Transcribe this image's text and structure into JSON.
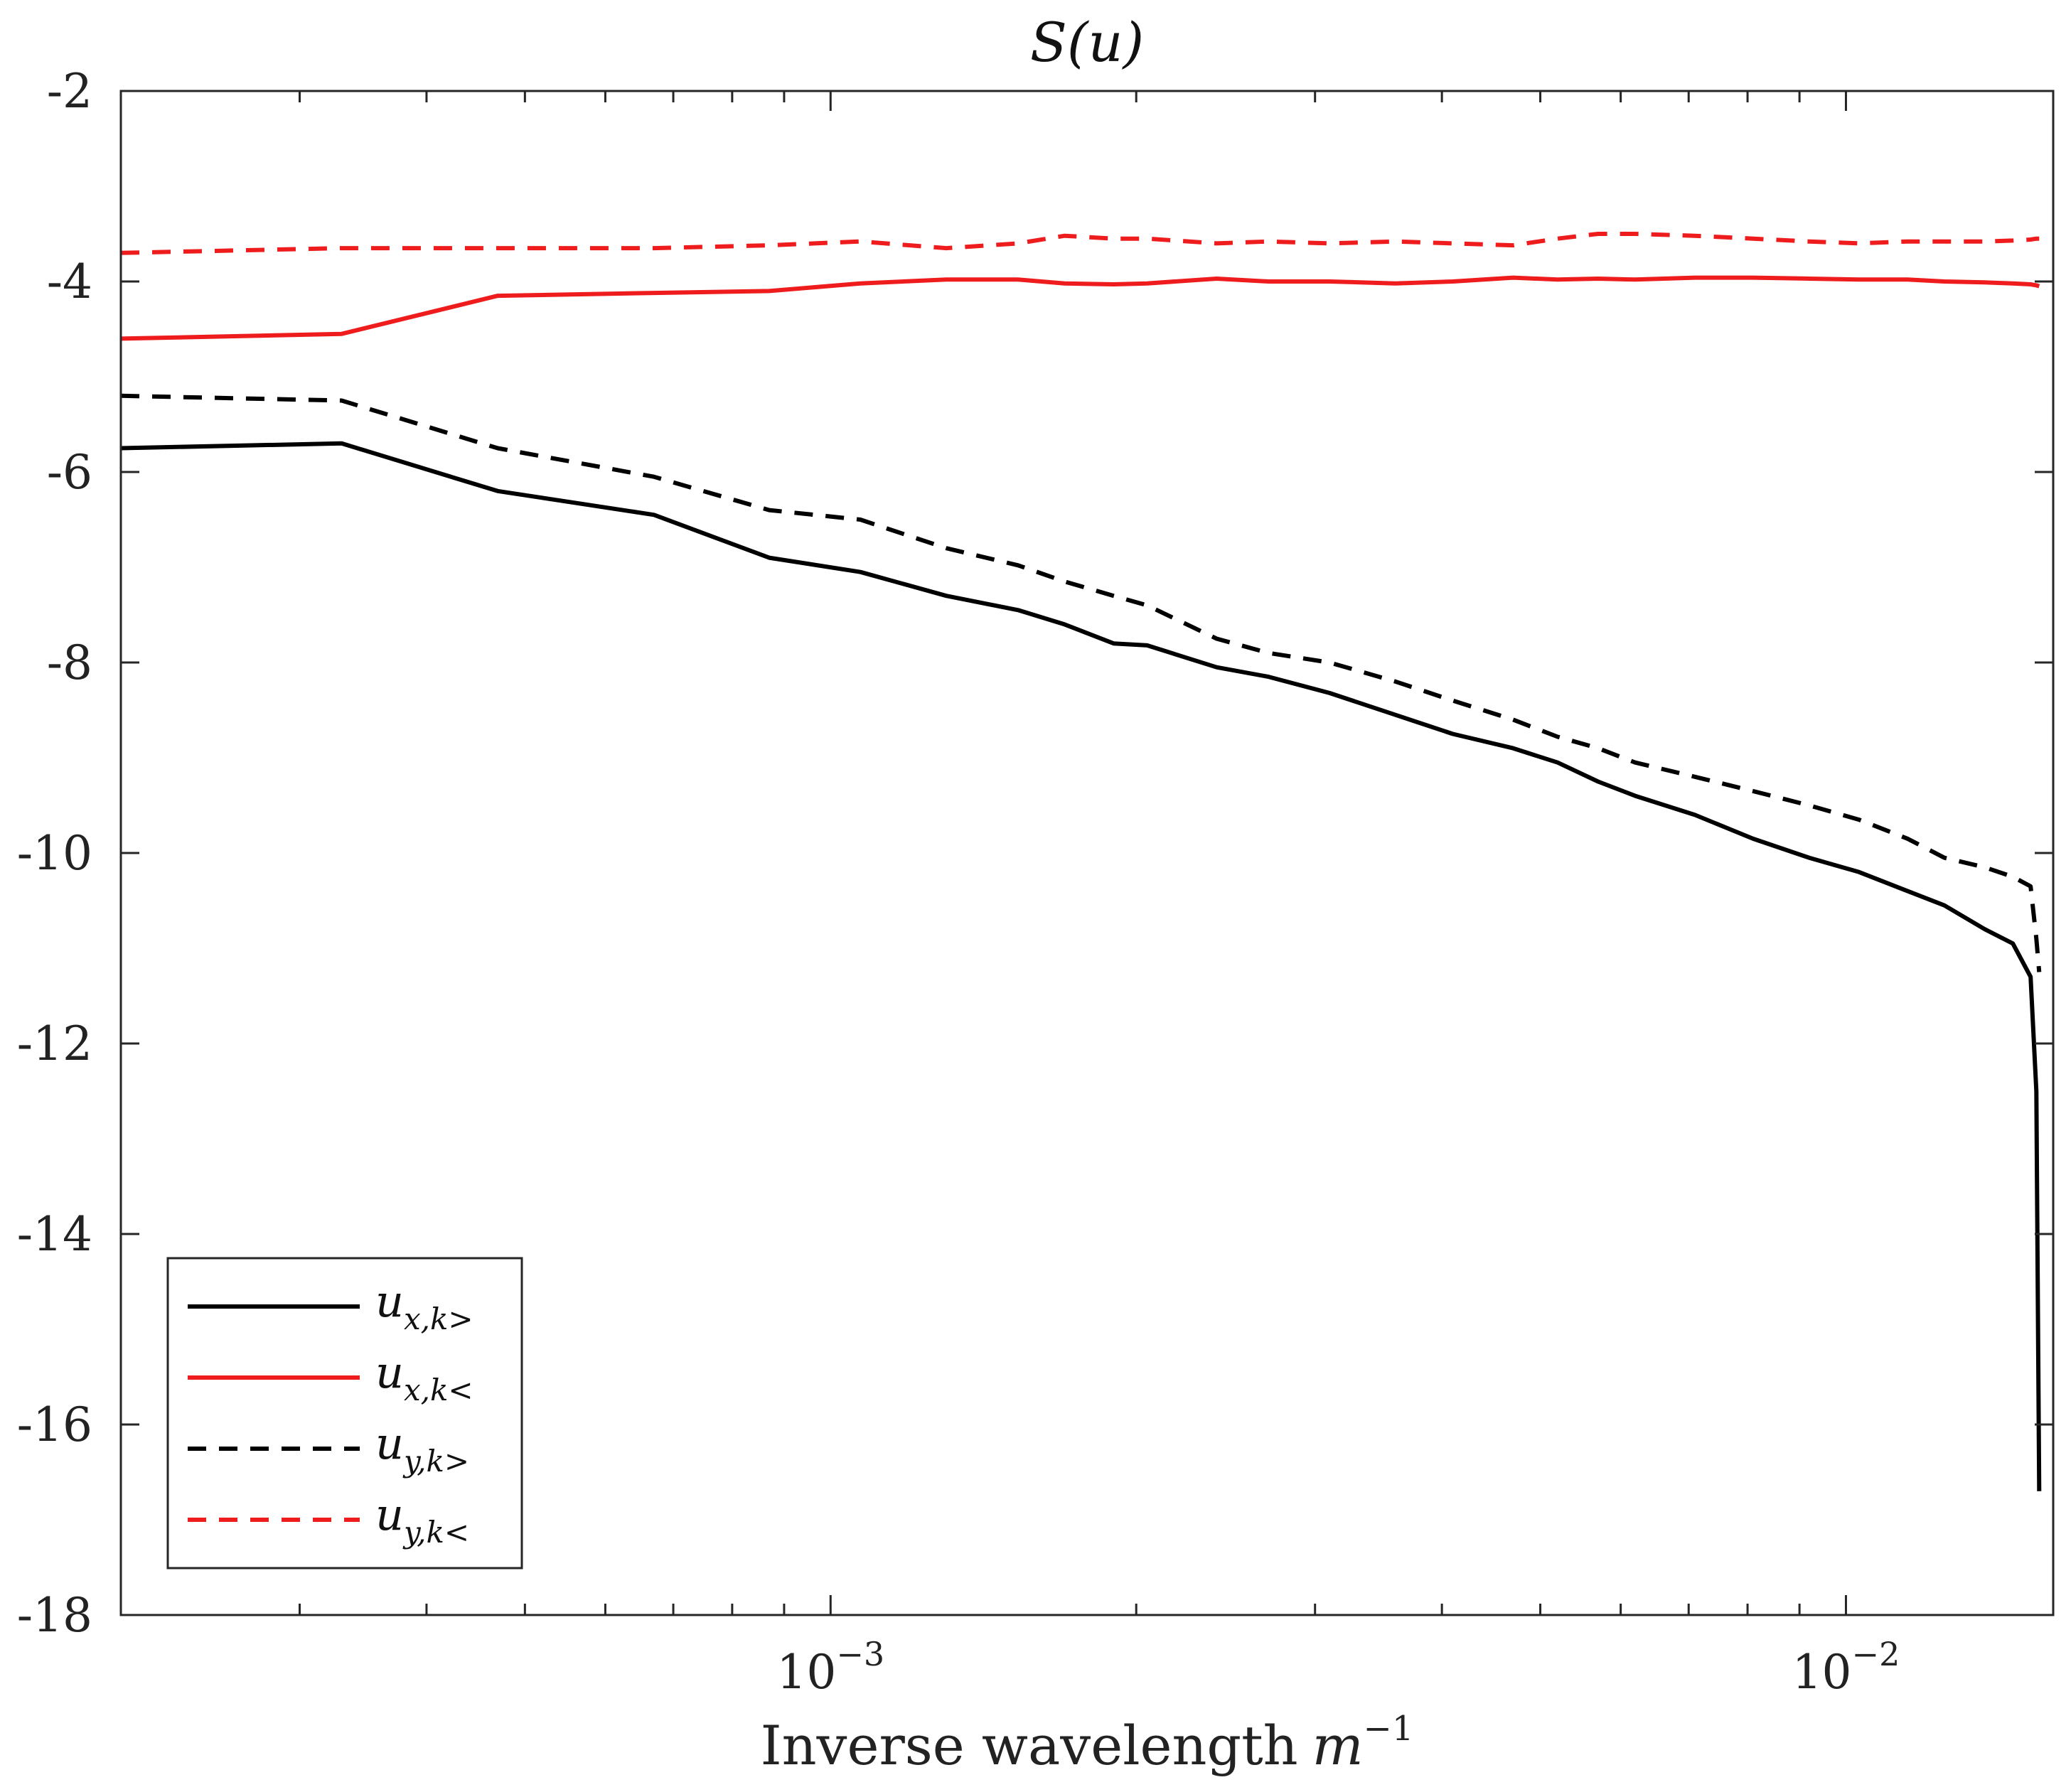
{
  "chart_data": {
    "type": "line",
    "title": "S(u)",
    "xlabel": "Inverse wavelength m−1",
    "xlabel_main": "Inverse wavelength",
    "xlabel_var": "m",
    "xlabel_exp": "−1",
    "ylabel": "",
    "xscale": "log",
    "xlim": [
      0.0002,
      0.016
    ],
    "ylim": [
      -18,
      -2
    ],
    "yticks": [
      -2,
      -4,
      -6,
      -8,
      -10,
      -12,
      -14,
      -16,
      -18
    ],
    "ytick_labels": [
      "-2",
      "-4",
      "-6",
      "-8",
      "-10",
      "-12",
      "-14",
      "-16",
      "-18"
    ],
    "xticks_major": [
      {
        "value": 0.001,
        "base": "10",
        "exp": "−3"
      },
      {
        "value": 0.01,
        "base": "10",
        "exp": "−2"
      }
    ],
    "xticks_minor": [
      0.0003,
      0.0004,
      0.0005,
      0.0006,
      0.0007,
      0.0008,
      0.0009,
      0.002,
      0.003,
      0.004,
      0.005,
      0.006,
      0.007,
      0.008,
      0.009
    ],
    "grid": false,
    "legend_position": "bottom-left",
    "series": [
      {
        "name": "ux,k>",
        "legend_base": "u",
        "legend_sub": "x,k>",
        "color": "#000000",
        "dash": "solid",
        "x": [
          0.0002,
          0.00033,
          0.00047,
          0.00067,
          0.00087,
          0.00107,
          0.0013,
          0.00153,
          0.0017,
          0.0019,
          0.00205,
          0.0024,
          0.0027,
          0.0031,
          0.0036,
          0.0041,
          0.0047,
          0.0052,
          0.0057,
          0.0062,
          0.0071,
          0.0081,
          0.0092,
          0.0103,
          0.0115,
          0.0125,
          0.0137,
          0.0146,
          0.0152,
          0.0154,
          0.0155
        ],
        "values": [
          -5.75,
          -5.7,
          -6.2,
          -6.45,
          -6.9,
          -7.05,
          -7.3,
          -7.45,
          -7.6,
          -7.8,
          -7.82,
          -8.05,
          -8.15,
          -8.32,
          -8.55,
          -8.75,
          -8.9,
          -9.05,
          -9.25,
          -9.4,
          -9.6,
          -9.85,
          -10.05,
          -10.2,
          -10.4,
          -10.55,
          -10.8,
          -10.95,
          -11.3,
          -12.5,
          -16.7
        ]
      },
      {
        "name": "ux,k<",
        "legend_base": "u",
        "legend_sub": "x,k<",
        "color": "#ee1c1c",
        "dash": "solid",
        "x": [
          0.0002,
          0.00033,
          0.00047,
          0.00067,
          0.00087,
          0.00107,
          0.0013,
          0.00153,
          0.0017,
          0.0019,
          0.00205,
          0.0024,
          0.0027,
          0.0031,
          0.0036,
          0.0041,
          0.0047,
          0.0052,
          0.0057,
          0.0062,
          0.0071,
          0.0081,
          0.0092,
          0.0103,
          0.0115,
          0.0125,
          0.0137,
          0.0146,
          0.0152,
          0.0154,
          0.0155
        ],
        "values": [
          -4.6,
          -4.55,
          -4.15,
          -4.12,
          -4.1,
          -4.02,
          -3.98,
          -3.98,
          -4.02,
          -4.03,
          -4.02,
          -3.97,
          -4.0,
          -4.0,
          -4.02,
          -4.0,
          -3.96,
          -3.98,
          -3.97,
          -3.98,
          -3.96,
          -3.96,
          -3.97,
          -3.98,
          -3.98,
          -4.0,
          -4.01,
          -4.02,
          -4.03,
          -4.04,
          -4.05
        ]
      },
      {
        "name": "uy,k>",
        "legend_base": "u",
        "legend_sub": "y,k>",
        "color": "#000000",
        "dash": "dashed",
        "x": [
          0.0002,
          0.00033,
          0.00047,
          0.00067,
          0.00087,
          0.00107,
          0.0013,
          0.00153,
          0.0017,
          0.0019,
          0.00205,
          0.0024,
          0.0027,
          0.0031,
          0.0036,
          0.0041,
          0.0047,
          0.0052,
          0.0057,
          0.0062,
          0.0071,
          0.0081,
          0.0092,
          0.0103,
          0.0115,
          0.0125,
          0.0137,
          0.0146,
          0.0152,
          0.0154,
          0.0155
        ],
        "values": [
          -5.2,
          -5.25,
          -5.75,
          -6.05,
          -6.4,
          -6.5,
          -6.8,
          -6.98,
          -7.15,
          -7.3,
          -7.4,
          -7.75,
          -7.9,
          -8.0,
          -8.2,
          -8.4,
          -8.6,
          -8.78,
          -8.9,
          -9.05,
          -9.2,
          -9.35,
          -9.5,
          -9.65,
          -9.85,
          -10.05,
          -10.15,
          -10.25,
          -10.35,
          -10.9,
          -11.25
        ]
      },
      {
        "name": "uy,k<",
        "legend_base": "u",
        "legend_sub": "y,k<",
        "color": "#ee1c1c",
        "dash": "dashed",
        "x": [
          0.0002,
          0.00033,
          0.00047,
          0.00067,
          0.00087,
          0.00107,
          0.0013,
          0.00153,
          0.0017,
          0.0019,
          0.00205,
          0.0024,
          0.0027,
          0.0031,
          0.0036,
          0.0041,
          0.0047,
          0.0052,
          0.0057,
          0.0062,
          0.0071,
          0.0081,
          0.0092,
          0.0103,
          0.0115,
          0.0125,
          0.0137,
          0.0146,
          0.0152,
          0.0154,
          0.0155
        ],
        "values": [
          -3.7,
          -3.65,
          -3.65,
          -3.65,
          -3.62,
          -3.58,
          -3.65,
          -3.6,
          -3.52,
          -3.55,
          -3.55,
          -3.6,
          -3.58,
          -3.6,
          -3.58,
          -3.6,
          -3.62,
          -3.55,
          -3.5,
          -3.5,
          -3.52,
          -3.55,
          -3.58,
          -3.6,
          -3.58,
          -3.58,
          -3.58,
          -3.57,
          -3.56,
          -3.55,
          -3.55
        ]
      }
    ]
  }
}
